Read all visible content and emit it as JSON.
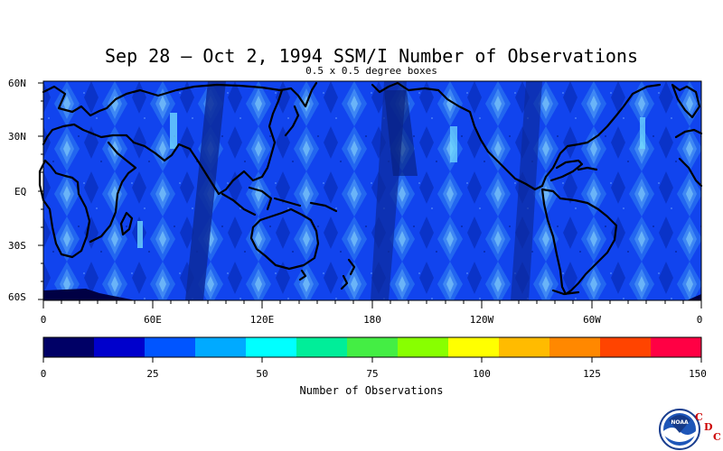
{
  "title": "Sep 28 – Oct 2, 1994 SSM/I Number of Observations",
  "subtitle": "0.5 x 0.5 degree boxes",
  "lat_labels": [
    "60N",
    "30N",
    "EQ",
    "30S",
    "60S"
  ],
  "lon_labels": [
    "0",
    "60E",
    "120E",
    "180",
    "120W",
    "60W",
    "0"
  ],
  "colorbar": {
    "title": "Number of Observations",
    "tick_labels": [
      "0",
      "25",
      "50",
      "75",
      "100",
      "125",
      "150"
    ],
    "colors": [
      "#000066",
      "#0000cc",
      "#0055ff",
      "#00aaff",
      "#00ffff",
      "#00ee99",
      "#44ee44",
      "#88ff00",
      "#ffff00",
      "#ffbb00",
      "#ff8800",
      "#ff4400",
      "#ff0044"
    ]
  },
  "logo": {
    "emblem": "NOAA",
    "letters": [
      "C",
      "D",
      "C"
    ]
  },
  "chart_data": {
    "type": "heatmap",
    "title": "Sep 28 – Oct 2, 1994 SSM/I Number of Observations",
    "subtitle": "0.5 x 0.5 degree boxes",
    "xlabel": "",
    "ylabel": "",
    "x_range": [
      0,
      360
    ],
    "y_range": [
      -60,
      60
    ],
    "colorbar_range": [
      0,
      150
    ],
    "colorbar_label": "Number of Observations"
  }
}
